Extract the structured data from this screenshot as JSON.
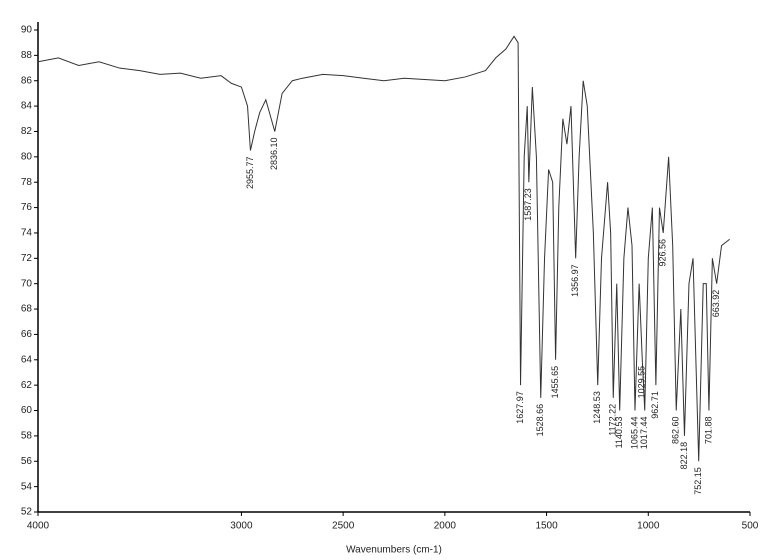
{
  "chart_data": {
    "type": "line",
    "x_label": "Wavenumbers (cm-1)",
    "xlim": [
      4000,
      500
    ],
    "xticks": [
      4000,
      3000,
      2500,
      2000,
      1500,
      1000,
      500
    ],
    "ylim": [
      52,
      90
    ],
    "yticks": [
      52,
      54,
      56,
      58,
      60,
      62,
      64,
      66,
      68,
      70,
      72,
      74,
      76,
      78,
      80,
      82,
      84,
      86,
      88,
      90
    ],
    "series": [
      {
        "color": "#333333",
        "x": [
          4000,
          3900,
          3800,
          3700,
          3600,
          3500,
          3400,
          3300,
          3200,
          3100,
          3050,
          3000,
          2970,
          2955.77,
          2935,
          2910,
          2880,
          2836.1,
          2800,
          2750,
          2700,
          2600,
          2500,
          2400,
          2300,
          2200,
          2100,
          2000,
          1900,
          1800,
          1750,
          1700,
          1660,
          1640,
          1627.97,
          1610,
          1595,
          1587.23,
          1570,
          1550,
          1528.66,
          1510,
          1490,
          1470,
          1455.65,
          1440,
          1420,
          1400,
          1380,
          1356.97,
          1340,
          1320,
          1300,
          1270,
          1248.53,
          1230,
          1200,
          1185,
          1172.22,
          1155,
          1140.53,
          1120,
          1100,
          1080,
          1065.44,
          1045,
          1029.55,
          1017.44,
          1000,
          980,
          962.71,
          945,
          926.56,
          900,
          880,
          862.6,
          840,
          822.18,
          800,
          780,
          752.15,
          730,
          715,
          701.88,
          685,
          663.92,
          640,
          600
        ],
        "values": [
          87.5,
          87.8,
          87.2,
          87.5,
          87,
          86.8,
          86.5,
          86.6,
          86.2,
          86.4,
          85.8,
          85.5,
          84,
          80.5,
          82,
          83.5,
          84.5,
          82,
          85,
          86,
          86.2,
          86.5,
          86.4,
          86.2,
          86,
          86.2,
          86.1,
          86,
          86.3,
          86.8,
          87.8,
          88.5,
          89.5,
          89,
          62,
          80,
          84,
          78,
          85.5,
          80,
          61,
          72,
          79,
          78,
          64,
          76,
          83,
          81,
          84,
          72,
          80,
          86,
          84,
          74,
          62,
          72,
          78,
          74,
          61,
          70,
          60,
          72,
          76,
          73,
          60,
          70,
          64,
          60,
          72,
          76,
          62,
          76,
          74,
          80,
          73,
          60,
          68,
          58,
          70,
          72,
          56,
          70,
          70,
          60,
          72,
          70,
          73,
          73.5
        ]
      }
    ],
    "annotations": [
      {
        "value": 2955.77,
        "label": "2955.77"
      },
      {
        "value": 2836.1,
        "label": "2836.10"
      },
      {
        "value": 1627.97,
        "label": "1627.97"
      },
      {
        "value": 1587.23,
        "label": "1587.23"
      },
      {
        "value": 1528.66,
        "label": "1528.66"
      },
      {
        "value": 1455.65,
        "label": "1455.65"
      },
      {
        "value": 1356.97,
        "label": "1356.97"
      },
      {
        "value": 1248.53,
        "label": "1248.53"
      },
      {
        "value": 1172.22,
        "label": "1172.22"
      },
      {
        "value": 1140.53,
        "label": "1140.53"
      },
      {
        "value": 1065.44,
        "label": "1065.44"
      },
      {
        "value": 1029.55,
        "label": "1029.55"
      },
      {
        "value": 1017.44,
        "label": "1017.44"
      },
      {
        "value": 962.71,
        "label": "962.71"
      },
      {
        "value": 926.56,
        "label": "926.56"
      },
      {
        "value": 862.6,
        "label": "862.60"
      },
      {
        "value": 822.18,
        "label": "822.18"
      },
      {
        "value": 752.15,
        "label": "752.15"
      },
      {
        "value": 701.88,
        "label": "701.88"
      },
      {
        "value": 663.92,
        "label": "663.92"
      }
    ]
  }
}
